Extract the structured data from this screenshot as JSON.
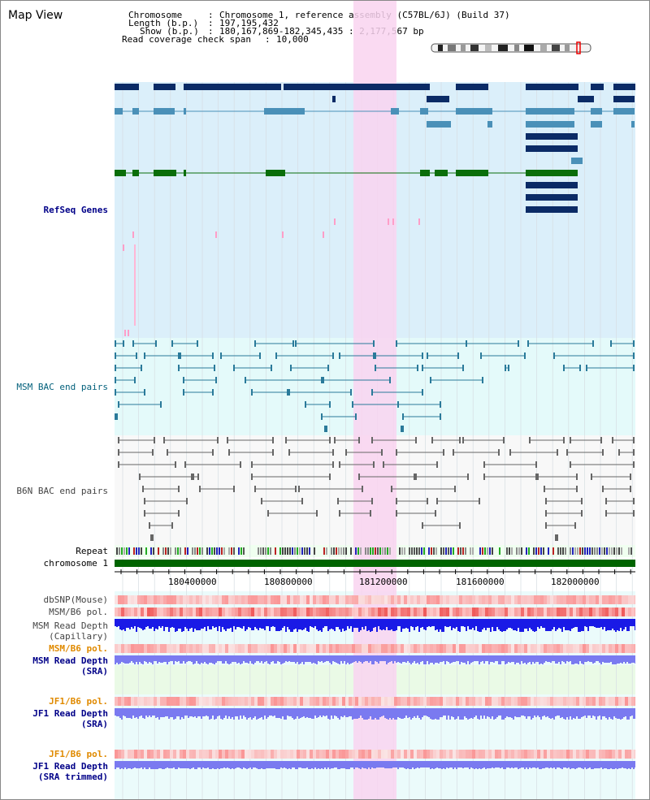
{
  "title": "Map View",
  "header": {
    "chromosome_label": "Chromosome",
    "chromosome_value": "Chromosome 1, reference assembly (C57BL/6J) (Build 37)",
    "length_label": "Length (b.p.)",
    "length_value": "197,195,432",
    "show_label": "Show (b.p.)",
    "show_value": "180,167,869-182,345,435 : 2,177,567 bp",
    "coverage_label": "Read coverage check span",
    "coverage_value": "10,000"
  },
  "tracks": {
    "refseq": "RefSeq Genes",
    "msm_bac": "MSM BAC end pairs",
    "b6n_bac": "B6N BAC end pairs",
    "repeat": "Repeat",
    "chromosome": "chromosome 1",
    "dbsnp": "dbSNP(Mouse)",
    "msm_pol": "MSM/B6 pol.",
    "msm_depth_cap_1": "MSM Read Depth",
    "msm_depth_cap_2": "(Capillary)",
    "msm_pol_2": "MSM/B6 pol.",
    "msm_depth_sra_1": "MSM Read Depth",
    "msm_depth_sra_2": "(SRA)",
    "jf1_pol": "JF1/B6 pol.",
    "jf1_depth_sra_1": "JF1 Read Depth",
    "jf1_depth_sra_2": "(SRA)",
    "jf1_pol_2": "JF1/B6 pol.",
    "jf1_depth_trim_1": "JF1 Read Depth",
    "jf1_depth_trim_2": "(SRA trimmed)"
  },
  "axis": {
    "ticks": [
      "180400000",
      "180800000",
      "181200000",
      "181600000",
      "182000000"
    ]
  },
  "colors": {
    "refseq_bg": "#dbeffa",
    "bac_bg": "#e4fafa",
    "highlight": "#f9d4f0",
    "gene_navy": "#0b2b66",
    "gene_steel": "#4a90b8",
    "gene_green": "#0a6e0a",
    "chromosome_bar": "#006400",
    "depth_blue": "#1a1ae6",
    "depth_violet": "#7a7af0"
  }
}
